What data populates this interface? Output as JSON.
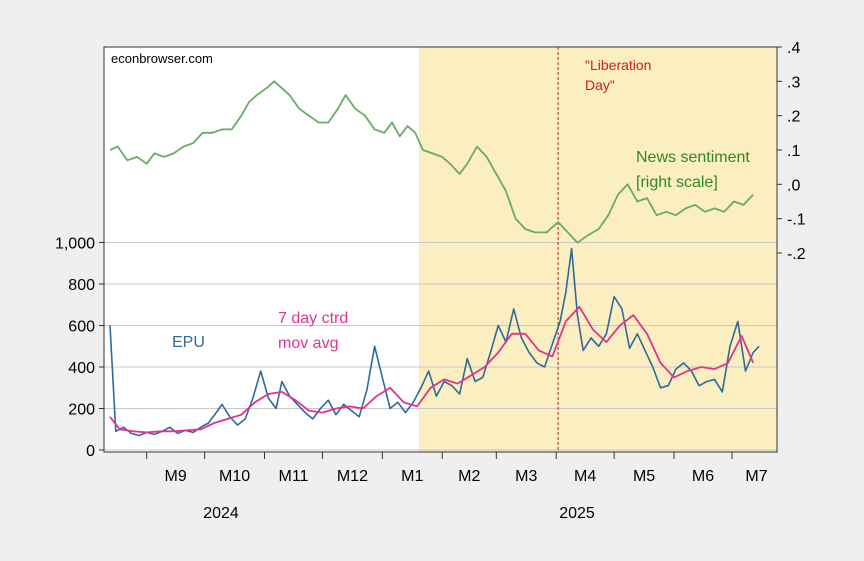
{
  "source_label": "econbrowser.com",
  "chart_data": {
    "type": "line",
    "title": "",
    "xlabel": "",
    "ylabel": "",
    "x_axis": {
      "month_labels": [
        "M9",
        "M10",
        "M11",
        "M12",
        "M1",
        "M2",
        "M3",
        "M4",
        "M5",
        "M6",
        "M7"
      ],
      "year_labels": [
        "2024",
        "2025"
      ],
      "range": [
        "2024-08-13",
        "2025-07-15"
      ]
    },
    "left_axis": {
      "ticks": [
        0,
        200,
        400,
        600,
        800,
        1000
      ],
      "tick_labels": [
        "0",
        "200",
        "400",
        "600",
        "800",
        "1,000"
      ],
      "ylim": [
        0,
        1000
      ]
    },
    "right_axis": {
      "ticks": [
        0.4,
        0.3,
        0.2,
        0.1,
        0.0,
        -0.1,
        -0.2
      ],
      "tick_labels": [
        ".4",
        ".3",
        ".2",
        ".1",
        ".0",
        "-.1",
        "-.2"
      ],
      "ylim": [
        -0.2,
        0.4
      ]
    },
    "grid": "horizontal",
    "shaded_region": {
      "start": "2025-01-20",
      "end": "2025-07-15",
      "color": "#fbeec0"
    },
    "vline": {
      "date": "2025-04-02",
      "label_line1": "\"Liberation",
      "label_line2": "Day\"",
      "color": "#b22222"
    },
    "annotations": {
      "epu": "EPU",
      "ma_line1": "7 day ctrd",
      "ma_line2": "mov avg",
      "news_line1": "News sentiment",
      "news_line2": "[right scale]"
    },
    "series": [
      {
        "name": "EPU",
        "axis": "left",
        "color": "#2e6a9a",
        "points": [
          [
            "2024-08-13",
            600
          ],
          [
            "2024-08-16",
            90
          ],
          [
            "2024-08-20",
            110
          ],
          [
            "2024-08-24",
            80
          ],
          [
            "2024-08-28",
            70
          ],
          [
            "2024-09-01",
            85
          ],
          [
            "2024-09-05",
            75
          ],
          [
            "2024-09-09",
            90
          ],
          [
            "2024-09-13",
            110
          ],
          [
            "2024-09-17",
            80
          ],
          [
            "2024-09-21",
            95
          ],
          [
            "2024-09-25",
            85
          ],
          [
            "2024-09-29",
            110
          ],
          [
            "2024-10-03",
            130
          ],
          [
            "2024-10-07",
            180
          ],
          [
            "2024-10-10",
            220
          ],
          [
            "2024-10-14",
            160
          ],
          [
            "2024-10-18",
            120
          ],
          [
            "2024-10-22",
            150
          ],
          [
            "2024-10-26",
            250
          ],
          [
            "2024-10-30",
            380
          ],
          [
            "2024-11-03",
            250
          ],
          [
            "2024-11-07",
            200
          ],
          [
            "2024-11-10",
            330
          ],
          [
            "2024-11-14",
            260
          ],
          [
            "2024-11-18",
            220
          ],
          [
            "2024-11-22",
            180
          ],
          [
            "2024-11-26",
            150
          ],
          [
            "2024-11-30",
            200
          ],
          [
            "2024-12-04",
            240
          ],
          [
            "2024-12-08",
            170
          ],
          [
            "2024-12-12",
            220
          ],
          [
            "2024-12-16",
            190
          ],
          [
            "2024-12-20",
            160
          ],
          [
            "2024-12-24",
            290
          ],
          [
            "2024-12-28",
            500
          ],
          [
            "2025-01-01",
            350
          ],
          [
            "2025-01-05",
            200
          ],
          [
            "2025-01-09",
            230
          ],
          [
            "2025-01-13",
            180
          ],
          [
            "2025-01-17",
            230
          ],
          [
            "2025-01-21",
            300
          ],
          [
            "2025-01-25",
            380
          ],
          [
            "2025-01-29",
            260
          ],
          [
            "2025-02-02",
            330
          ],
          [
            "2025-02-06",
            310
          ],
          [
            "2025-02-10",
            270
          ],
          [
            "2025-02-14",
            440
          ],
          [
            "2025-02-18",
            330
          ],
          [
            "2025-02-22",
            350
          ],
          [
            "2025-02-26",
            470
          ],
          [
            "2025-03-02",
            600
          ],
          [
            "2025-03-06",
            520
          ],
          [
            "2025-03-10",
            680
          ],
          [
            "2025-03-14",
            540
          ],
          [
            "2025-03-18",
            470
          ],
          [
            "2025-03-22",
            420
          ],
          [
            "2025-03-26",
            400
          ],
          [
            "2025-03-30",
            510
          ],
          [
            "2025-04-03",
            620
          ],
          [
            "2025-04-06",
            760
          ],
          [
            "2025-04-09",
            970
          ],
          [
            "2025-04-12",
            650
          ],
          [
            "2025-04-15",
            480
          ],
          [
            "2025-04-19",
            540
          ],
          [
            "2025-04-23",
            500
          ],
          [
            "2025-04-27",
            560
          ],
          [
            "2025-05-01",
            740
          ],
          [
            "2025-05-05",
            680
          ],
          [
            "2025-05-09",
            490
          ],
          [
            "2025-05-13",
            560
          ],
          [
            "2025-05-17",
            480
          ],
          [
            "2025-05-21",
            400
          ],
          [
            "2025-05-25",
            300
          ],
          [
            "2025-05-29",
            310
          ],
          [
            "2025-06-02",
            390
          ],
          [
            "2025-06-06",
            420
          ],
          [
            "2025-06-10",
            380
          ],
          [
            "2025-06-14",
            310
          ],
          [
            "2025-06-18",
            330
          ],
          [
            "2025-06-22",
            340
          ],
          [
            "2025-06-26",
            280
          ],
          [
            "2025-06-30",
            500
          ],
          [
            "2025-07-04",
            620
          ],
          [
            "2025-07-08",
            380
          ],
          [
            "2025-07-12",
            470
          ],
          [
            "2025-07-15",
            500
          ]
        ]
      },
      {
        "name": "7 day ctrd mov avg",
        "axis": "left",
        "color": "#e0358f",
        "points": [
          [
            "2024-08-13",
            160
          ],
          [
            "2024-08-18",
            100
          ],
          [
            "2024-08-25",
            90
          ],
          [
            "2024-09-01",
            85
          ],
          [
            "2024-09-08",
            90
          ],
          [
            "2024-09-15",
            90
          ],
          [
            "2024-09-22",
            95
          ],
          [
            "2024-09-29",
            100
          ],
          [
            "2024-10-06",
            130
          ],
          [
            "2024-10-13",
            150
          ],
          [
            "2024-10-20",
            170
          ],
          [
            "2024-10-27",
            230
          ],
          [
            "2024-11-03",
            270
          ],
          [
            "2024-11-10",
            280
          ],
          [
            "2024-11-17",
            240
          ],
          [
            "2024-11-24",
            190
          ],
          [
            "2024-12-01",
            180
          ],
          [
            "2024-12-08",
            200
          ],
          [
            "2024-12-15",
            210
          ],
          [
            "2024-12-22",
            200
          ],
          [
            "2024-12-29",
            260
          ],
          [
            "2025-01-05",
            300
          ],
          [
            "2025-01-12",
            230
          ],
          [
            "2025-01-19",
            210
          ],
          [
            "2025-01-26",
            300
          ],
          [
            "2025-02-02",
            340
          ],
          [
            "2025-02-09",
            320
          ],
          [
            "2025-02-16",
            360
          ],
          [
            "2025-02-23",
            400
          ],
          [
            "2025-03-02",
            470
          ],
          [
            "2025-03-09",
            560
          ],
          [
            "2025-03-16",
            560
          ],
          [
            "2025-03-23",
            480
          ],
          [
            "2025-03-30",
            450
          ],
          [
            "2025-04-06",
            620
          ],
          [
            "2025-04-13",
            690
          ],
          [
            "2025-04-20",
            580
          ],
          [
            "2025-04-27",
            520
          ],
          [
            "2025-05-04",
            600
          ],
          [
            "2025-05-11",
            650
          ],
          [
            "2025-05-18",
            560
          ],
          [
            "2025-05-25",
            420
          ],
          [
            "2025-06-01",
            350
          ],
          [
            "2025-06-08",
            380
          ],
          [
            "2025-06-15",
            400
          ],
          [
            "2025-06-22",
            390
          ],
          [
            "2025-06-29",
            420
          ],
          [
            "2025-07-06",
            550
          ],
          [
            "2025-07-12",
            420
          ]
        ]
      },
      {
        "name": "News sentiment",
        "axis": "right",
        "color": "#6aaa6a",
        "points": [
          [
            "2024-08-13",
            0.1
          ],
          [
            "2024-08-17",
            0.11
          ],
          [
            "2024-08-22",
            0.07
          ],
          [
            "2024-08-27",
            0.08
          ],
          [
            "2024-09-01",
            0.06
          ],
          [
            "2024-09-05",
            0.09
          ],
          [
            "2024-09-10",
            0.08
          ],
          [
            "2024-09-15",
            0.09
          ],
          [
            "2024-09-20",
            0.11
          ],
          [
            "2024-09-25",
            0.12
          ],
          [
            "2024-09-30",
            0.15
          ],
          [
            "2024-10-05",
            0.15
          ],
          [
            "2024-10-10",
            0.16
          ],
          [
            "2024-10-15",
            0.16
          ],
          [
            "2024-10-20",
            0.2
          ],
          [
            "2024-10-24",
            0.24
          ],
          [
            "2024-10-28",
            0.26
          ],
          [
            "2024-11-02",
            0.28
          ],
          [
            "2024-11-06",
            0.3
          ],
          [
            "2024-11-10",
            0.28
          ],
          [
            "2024-11-14",
            0.26
          ],
          [
            "2024-11-19",
            0.22
          ],
          [
            "2024-11-24",
            0.2
          ],
          [
            "2024-11-29",
            0.18
          ],
          [
            "2024-12-04",
            0.18
          ],
          [
            "2024-12-09",
            0.22
          ],
          [
            "2024-12-13",
            0.26
          ],
          [
            "2024-12-18",
            0.22
          ],
          [
            "2024-12-23",
            0.2
          ],
          [
            "2024-12-28",
            0.16
          ],
          [
            "2025-01-02",
            0.15
          ],
          [
            "2025-01-06",
            0.18
          ],
          [
            "2025-01-10",
            0.14
          ],
          [
            "2025-01-14",
            0.17
          ],
          [
            "2025-01-18",
            0.15
          ],
          [
            "2025-01-22",
            0.1
          ],
          [
            "2025-01-27",
            0.09
          ],
          [
            "2025-02-01",
            0.08
          ],
          [
            "2025-02-05",
            0.06
          ],
          [
            "2025-02-10",
            0.03
          ],
          [
            "2025-02-14",
            0.06
          ],
          [
            "2025-02-19",
            0.11
          ],
          [
            "2025-02-24",
            0.08
          ],
          [
            "2025-03-01",
            0.03
          ],
          [
            "2025-03-06",
            -0.02
          ],
          [
            "2025-03-11",
            -0.1
          ],
          [
            "2025-03-16",
            -0.13
          ],
          [
            "2025-03-21",
            -0.14
          ],
          [
            "2025-03-27",
            -0.14
          ],
          [
            "2025-04-02",
            -0.11
          ],
          [
            "2025-04-07",
            -0.14
          ],
          [
            "2025-04-12",
            -0.17
          ],
          [
            "2025-04-17",
            -0.15
          ],
          [
            "2025-04-23",
            -0.13
          ],
          [
            "2025-04-28",
            -0.09
          ],
          [
            "2025-05-03",
            -0.03
          ],
          [
            "2025-05-08",
            0.0
          ],
          [
            "2025-05-13",
            -0.05
          ],
          [
            "2025-05-18",
            -0.04
          ],
          [
            "2025-05-23",
            -0.09
          ],
          [
            "2025-05-28",
            -0.08
          ],
          [
            "2025-06-02",
            -0.09
          ],
          [
            "2025-06-07",
            -0.07
          ],
          [
            "2025-06-12",
            -0.06
          ],
          [
            "2025-06-17",
            -0.08
          ],
          [
            "2025-06-22",
            -0.07
          ],
          [
            "2025-06-27",
            -0.08
          ],
          [
            "2025-07-02",
            -0.05
          ],
          [
            "2025-07-07",
            -0.06
          ],
          [
            "2025-07-12",
            -0.03
          ]
        ]
      }
    ]
  }
}
